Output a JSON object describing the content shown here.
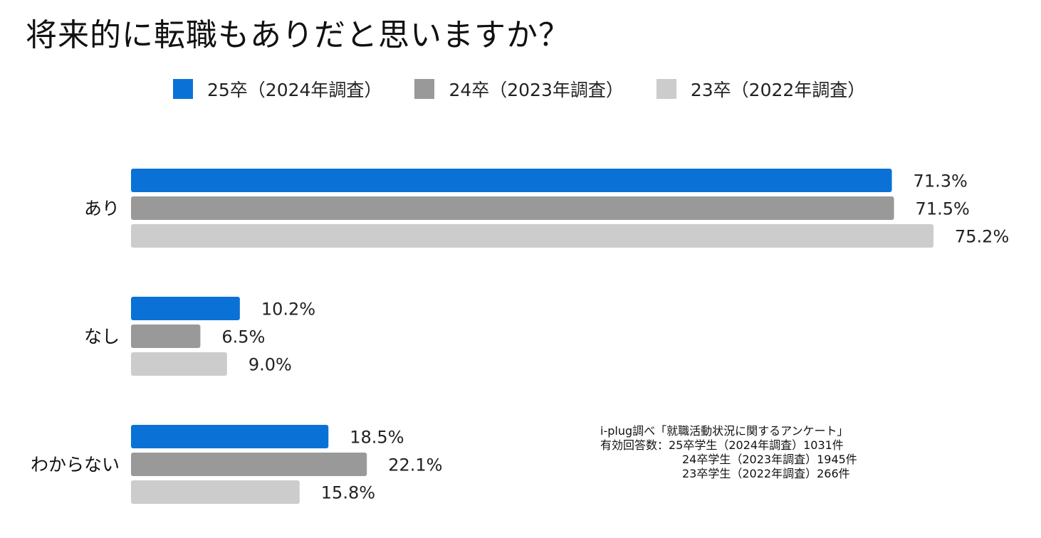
{
  "chart_data": {
    "type": "bar",
    "orientation": "horizontal",
    "title": "将来的に転職もありだと思いますか？",
    "categories": [
      "あり",
      "なし",
      "わからない"
    ],
    "series": [
      {
        "name": "25卒（2024年調査）",
        "color": "#0A72D6",
        "values": [
          71.3,
          10.2,
          18.5
        ],
        "labels": [
          "71.3%",
          "10.2%",
          "18.5%"
        ]
      },
      {
        "name": "24卒（2023年調査）",
        "color": "#999999",
        "values": [
          71.5,
          6.5,
          22.1
        ],
        "labels": [
          "71.5%",
          "6.5%",
          "22.1%"
        ]
      },
      {
        "name": "23卒（2022年調査）",
        "color": "#CCCCCC",
        "values": [
          75.2,
          9.0,
          15.8
        ],
        "labels": [
          "75.2%",
          "9.0%",
          "15.8%"
        ]
      }
    ],
    "xlim": [
      0,
      75.2
    ],
    "legend_position": "top",
    "grid": false
  },
  "source": {
    "line1": "i-plug調べ「就職活動状況に関するアンケート」",
    "line2": "有効回答数：25卒学生（2024年調査）1031件",
    "line3": "24卒学生（2023年調査）1945件",
    "line4": "23卒学生（2022年調査）266件"
  }
}
